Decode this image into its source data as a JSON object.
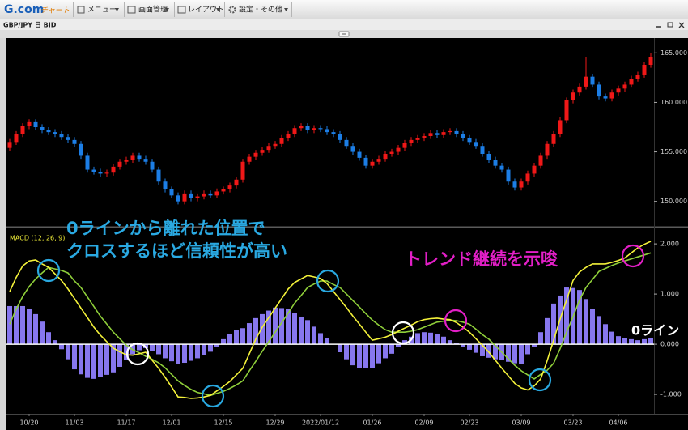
{
  "toolbar": {
    "logo": "G.com",
    "logo_sub": "チャート",
    "menus": [
      "メニュー",
      "画面管理",
      "レイアウト",
      "設定・その他"
    ]
  },
  "annotations": {
    "left_line1": "0ラインから離れた位置で",
    "left_line2": "クロスするほど信頼性が高い",
    "right": "トレンド継続を示唆",
    "zero_line": "0ライン"
  },
  "chart_data": [
    {
      "type": "candlestick",
      "title": "GBP/JPY 日 BID",
      "up_color": "#f01818",
      "down_color": "#1c7ee6",
      "ylim": [
        147.6,
        166.5
      ],
      "yticks": [
        {
          "value": 150,
          "label": "150.000"
        },
        {
          "value": 155,
          "label": "155.000"
        },
        {
          "value": 160,
          "label": "160.000"
        },
        {
          "value": 165,
          "label": "165.000"
        }
      ],
      "ohlc": [
        [
          155.4,
          156.3,
          155.1,
          156.0
        ],
        [
          156.0,
          157.1,
          155.7,
          156.8
        ],
        [
          156.8,
          157.9,
          156.5,
          157.6
        ],
        [
          157.6,
          158.3,
          157.3,
          158.0
        ],
        [
          158.0,
          158.3,
          157.2,
          157.5
        ],
        [
          157.5,
          157.8,
          156.9,
          157.2
        ],
        [
          157.2,
          157.5,
          156.7,
          157.0
        ],
        [
          157.0,
          157.3,
          156.5,
          156.8
        ],
        [
          156.8,
          157.1,
          156.2,
          156.5
        ],
        [
          156.5,
          156.8,
          155.9,
          156.2
        ],
        [
          156.2,
          156.5,
          155.5,
          155.8
        ],
        [
          155.8,
          156.1,
          154.3,
          154.6
        ],
        [
          154.6,
          154.9,
          152.9,
          153.2
        ],
        [
          153.2,
          153.5,
          152.7,
          153.0
        ],
        [
          153.0,
          153.3,
          152.5,
          152.8
        ],
        [
          152.8,
          153.2,
          152.5,
          152.9
        ],
        [
          152.9,
          153.8,
          152.6,
          153.5
        ],
        [
          153.5,
          154.3,
          153.2,
          154.0
        ],
        [
          154.0,
          154.5,
          153.7,
          154.2
        ],
        [
          154.2,
          154.9,
          153.9,
          154.6
        ],
        [
          154.6,
          154.9,
          154.0,
          154.3
        ],
        [
          154.3,
          154.6,
          153.7,
          154.0
        ],
        [
          154.0,
          154.3,
          152.9,
          153.2
        ],
        [
          153.2,
          153.5,
          151.7,
          152.0
        ],
        [
          152.0,
          152.3,
          150.9,
          151.2
        ],
        [
          151.2,
          151.5,
          150.3,
          150.6
        ],
        [
          150.6,
          150.9,
          149.7,
          150.0
        ],
        [
          150.0,
          151.1,
          149.7,
          150.8
        ],
        [
          150.8,
          151.1,
          150.0,
          150.3
        ],
        [
          150.3,
          150.8,
          150.0,
          150.5
        ],
        [
          150.5,
          151.1,
          150.2,
          150.8
        ],
        [
          150.8,
          151.1,
          150.3,
          150.6
        ],
        [
          150.6,
          151.3,
          150.3,
          151.0
        ],
        [
          151.0,
          151.5,
          150.7,
          151.2
        ],
        [
          151.2,
          151.9,
          150.9,
          151.6
        ],
        [
          151.6,
          152.5,
          151.3,
          152.2
        ],
        [
          152.2,
          154.3,
          151.9,
          154.0
        ],
        [
          154.0,
          154.8,
          153.7,
          154.5
        ],
        [
          154.5,
          155.2,
          154.2,
          154.9
        ],
        [
          154.9,
          155.5,
          154.6,
          155.2
        ],
        [
          155.2,
          155.9,
          154.9,
          155.6
        ],
        [
          155.6,
          156.1,
          155.3,
          155.8
        ],
        [
          155.8,
          156.7,
          155.5,
          156.4
        ],
        [
          156.4,
          157.1,
          156.1,
          156.8
        ],
        [
          156.8,
          157.7,
          156.5,
          157.4
        ],
        [
          157.4,
          157.9,
          157.1,
          157.6
        ],
        [
          157.6,
          157.9,
          156.9,
          157.2
        ],
        [
          157.2,
          157.7,
          156.9,
          157.4
        ],
        [
          157.4,
          157.7,
          157.0,
          157.3
        ],
        [
          157.3,
          157.6,
          156.7,
          157.0
        ],
        [
          157.0,
          157.3,
          156.5,
          156.8
        ],
        [
          156.8,
          157.1,
          155.9,
          156.2
        ],
        [
          156.2,
          156.5,
          155.3,
          155.6
        ],
        [
          155.6,
          155.9,
          154.7,
          155.0
        ],
        [
          155.0,
          155.3,
          154.1,
          154.4
        ],
        [
          154.4,
          154.7,
          153.3,
          153.6
        ],
        [
          153.6,
          154.3,
          153.3,
          154.0
        ],
        [
          154.0,
          154.6,
          153.7,
          154.3
        ],
        [
          154.3,
          155.1,
          154.0,
          154.8
        ],
        [
          154.8,
          155.3,
          154.5,
          155.0
        ],
        [
          155.0,
          155.7,
          154.7,
          155.4
        ],
        [
          155.4,
          156.2,
          155.1,
          155.9
        ],
        [
          155.9,
          156.5,
          155.6,
          156.2
        ],
        [
          156.2,
          156.7,
          155.9,
          156.4
        ],
        [
          156.4,
          156.9,
          156.1,
          156.6
        ],
        [
          156.6,
          157.2,
          156.3,
          156.9
        ],
        [
          156.9,
          157.2,
          156.4,
          156.7
        ],
        [
          156.7,
          157.3,
          156.4,
          157.0
        ],
        [
          157.0,
          157.4,
          156.7,
          157.1
        ],
        [
          157.1,
          157.4,
          156.5,
          156.8
        ],
        [
          156.8,
          157.1,
          156.1,
          156.4
        ],
        [
          156.4,
          156.7,
          155.7,
          156.0
        ],
        [
          156.0,
          156.3,
          155.3,
          155.6
        ],
        [
          155.6,
          155.9,
          154.5,
          154.8
        ],
        [
          154.8,
          155.1,
          153.9,
          154.2
        ],
        [
          154.2,
          154.5,
          153.3,
          153.6
        ],
        [
          153.6,
          153.9,
          152.9,
          153.2
        ],
        [
          153.2,
          153.5,
          151.7,
          152.0
        ],
        [
          152.0,
          152.3,
          151.1,
          151.4
        ],
        [
          151.4,
          152.3,
          151.1,
          152.0
        ],
        [
          152.0,
          153.1,
          151.7,
          152.8
        ],
        [
          152.8,
          153.9,
          152.5,
          153.6
        ],
        [
          153.6,
          154.9,
          153.3,
          154.6
        ],
        [
          154.6,
          156.1,
          154.3,
          155.8
        ],
        [
          155.8,
          157.1,
          155.5,
          156.8
        ],
        [
          156.8,
          158.5,
          156.5,
          158.2
        ],
        [
          158.2,
          160.5,
          157.9,
          160.2
        ],
        [
          160.2,
          161.3,
          159.9,
          161.0
        ],
        [
          161.0,
          161.9,
          160.7,
          161.6
        ],
        [
          161.6,
          164.6,
          161.3,
          162.6
        ],
        [
          162.6,
          162.9,
          161.5,
          161.8
        ],
        [
          161.8,
          162.1,
          160.3,
          160.6
        ],
        [
          160.6,
          160.9,
          160.1,
          160.4
        ],
        [
          160.4,
          161.3,
          160.1,
          161.0
        ],
        [
          161.0,
          161.7,
          160.7,
          161.4
        ],
        [
          161.4,
          162.1,
          161.1,
          161.8
        ],
        [
          161.8,
          162.7,
          161.5,
          162.4
        ],
        [
          162.4,
          163.1,
          162.1,
          162.8
        ],
        [
          162.8,
          164.1,
          162.5,
          163.8
        ],
        [
          163.8,
          165.0,
          163.5,
          164.6
        ]
      ]
    },
    {
      "type": "macd",
      "title": "MACD (12, 26, 9)",
      "ylim": [
        -1.37,
        2.26
      ],
      "yticks": [
        {
          "value": -1,
          "label": "-1.000"
        },
        {
          "value": 0,
          "label": "0.000"
        },
        {
          "value": 1,
          "label": "1.000"
        },
        {
          "value": 2,
          "label": "2.000"
        }
      ],
      "categories": [
        null,
        null,
        null,
        "10/20",
        null,
        null,
        null,
        null,
        null,
        null,
        "11/03",
        null,
        null,
        null,
        null,
        null,
        null,
        null,
        "11/17",
        null,
        null,
        null,
        null,
        null,
        null,
        "12/01",
        null,
        null,
        null,
        null,
        null,
        null,
        null,
        "12/15",
        null,
        null,
        null,
        null,
        null,
        null,
        null,
        "12/29",
        null,
        null,
        null,
        null,
        null,
        null,
        "2022/01/12",
        null,
        null,
        null,
        null,
        null,
        null,
        null,
        "01/26",
        null,
        null,
        null,
        null,
        null,
        null,
        null,
        "02/09",
        null,
        null,
        null,
        null,
        null,
        null,
        "02/23",
        null,
        null,
        null,
        null,
        null,
        null,
        null,
        "03/09",
        null,
        null,
        null,
        null,
        null,
        null,
        null,
        "03/23",
        null,
        null,
        null,
        null,
        null,
        null,
        "04/06",
        null,
        null,
        null,
        null,
        null
      ],
      "series": [
        {
          "style": "bar",
          "color": "#8777ee",
          "values": [
            0.76,
            0.76,
            0.76,
            0.7,
            0.6,
            0.45,
            0.24,
            0.08,
            -0.1,
            -0.3,
            -0.5,
            -0.6,
            -0.67,
            -0.69,
            -0.66,
            -0.61,
            -0.56,
            -0.45,
            -0.32,
            -0.2,
            -0.12,
            -0.08,
            -0.14,
            -0.2,
            -0.28,
            -0.34,
            -0.4,
            -0.37,
            -0.33,
            -0.28,
            -0.22,
            -0.15,
            -0.05,
            0.1,
            0.2,
            0.28,
            0.32,
            0.42,
            0.52,
            0.6,
            0.67,
            0.73,
            0.72,
            0.7,
            0.62,
            0.55,
            0.48,
            0.35,
            0.22,
            0.12,
            0.0,
            -0.16,
            -0.3,
            -0.42,
            -0.48,
            -0.48,
            -0.48,
            -0.38,
            -0.28,
            -0.19,
            -0.05,
            0.08,
            0.15,
            0.22,
            0.24,
            0.23,
            0.21,
            0.15,
            0.08,
            0.02,
            -0.06,
            -0.11,
            -0.17,
            -0.24,
            -0.27,
            -0.3,
            -0.32,
            -0.35,
            -0.38,
            -0.4,
            -0.2,
            -0.05,
            0.24,
            0.52,
            0.81,
            0.97,
            1.13,
            1.12,
            1.08,
            0.9,
            0.7,
            0.56,
            0.4,
            0.25,
            0.16,
            0.12,
            0.1,
            0.08,
            0.1,
            0.12
          ]
        },
        {
          "style": "line",
          "color": "#8fcf3a",
          "values": [
            0.4,
            0.7,
            0.95,
            1.15,
            1.3,
            1.42,
            1.53,
            1.5,
            1.47,
            1.42,
            1.26,
            1.13,
            0.94,
            0.75,
            0.56,
            0.4,
            0.24,
            0.11,
            -0.02,
            -0.11,
            -0.17,
            -0.24,
            -0.3,
            -0.37,
            -0.47,
            -0.6,
            -0.73,
            -0.82,
            -0.9,
            -0.96,
            -0.99,
            -1.02,
            -0.98,
            -0.94,
            -0.88,
            -0.81,
            -0.73,
            -0.53,
            -0.34,
            -0.14,
            0.05,
            0.24,
            0.43,
            0.62,
            0.82,
            0.97,
            1.13,
            1.2,
            1.26,
            1.26,
            1.19,
            1.13,
            1.0,
            0.87,
            0.74,
            0.61,
            0.48,
            0.38,
            0.29,
            0.24,
            0.24,
            0.24,
            0.26,
            0.29,
            0.34,
            0.39,
            0.44,
            0.46,
            0.48,
            0.47,
            0.44,
            0.4,
            0.3,
            0.19,
            0.1,
            -0.03,
            -0.16,
            -0.29,
            -0.42,
            -0.53,
            -0.61,
            -0.69,
            -0.6,
            -0.52,
            -0.38,
            -0.09,
            0.24,
            0.55,
            0.88,
            1.13,
            1.29,
            1.45,
            1.51,
            1.57,
            1.62,
            1.66,
            1.7,
            1.74,
            1.78,
            1.82
          ]
        },
        {
          "style": "line",
          "color": "#f4f23a",
          "values": [
            1.05,
            1.33,
            1.56,
            1.66,
            1.68,
            1.6,
            1.53,
            1.4,
            1.27,
            1.1,
            0.91,
            0.72,
            0.53,
            0.34,
            0.18,
            0.05,
            -0.08,
            -0.15,
            -0.21,
            -0.22,
            -0.19,
            -0.16,
            -0.32,
            -0.48,
            -0.66,
            -0.85,
            -1.05,
            -1.06,
            -1.08,
            -1.07,
            -1.05,
            -1.02,
            -0.93,
            -0.84,
            -0.74,
            -0.61,
            -0.48,
            -0.19,
            0.1,
            0.34,
            0.53,
            0.72,
            0.91,
            1.1,
            1.23,
            1.3,
            1.37,
            1.34,
            1.31,
            1.21,
            1.05,
            0.89,
            0.73,
            0.56,
            0.4,
            0.24,
            0.08,
            0.11,
            0.14,
            0.19,
            0.26,
            0.32,
            0.38,
            0.45,
            0.49,
            0.51,
            0.52,
            0.5,
            0.49,
            0.43,
            0.34,
            0.24,
            0.11,
            -0.02,
            -0.16,
            -0.32,
            -0.48,
            -0.63,
            -0.78,
            -0.87,
            -0.91,
            -0.83,
            -0.69,
            -0.33,
            0.08,
            0.5,
            0.88,
            1.27,
            1.44,
            1.53,
            1.6,
            1.6,
            1.6,
            1.63,
            1.67,
            1.72,
            1.82,
            1.92,
            1.99,
            2.05
          ]
        }
      ]
    }
  ]
}
